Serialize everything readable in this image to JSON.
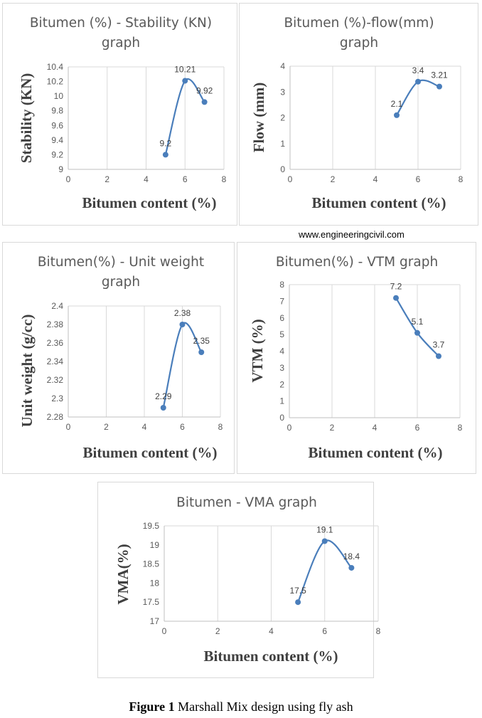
{
  "watermark": "www.engineeringcivil.com",
  "caption": {
    "label": "Figure 1",
    "text": " Marshall Mix design using fly ash"
  },
  "colors": {
    "series": "#4a7ebb",
    "grid": "#d9d9d9",
    "text": "#595959"
  },
  "chart_data": [
    {
      "type": "line",
      "title_lines": [
        "Bitumen (%) - Stability (KN)",
        "graph"
      ],
      "xlabel": "Bitumen content (%)",
      "ylabel": "Stability (KN)",
      "xlim": [
        0,
        8
      ],
      "xticks": [
        0,
        2,
        4,
        6,
        8
      ],
      "xtick_labels": [
        "0",
        "2",
        "4",
        "6",
        "8"
      ],
      "ylim": [
        9,
        10.4
      ],
      "yticks": [
        9,
        9.2,
        9.4,
        9.6,
        9.8,
        10,
        10.2,
        10.4
      ],
      "ytick_labels": [
        "9",
        "9.2",
        "9.4",
        "9.6",
        "9.8",
        "10",
        "10.2",
        "10.4"
      ],
      "x": [
        5,
        6,
        7
      ],
      "y": [
        9.2,
        10.21,
        9.92
      ],
      "data_labels": [
        "9.2",
        "10.21",
        "9.92"
      ],
      "smooth": true,
      "grid": "vertical"
    },
    {
      "type": "line",
      "title_lines": [
        "Bitumen (%)-flow(mm)",
        "graph"
      ],
      "xlabel": "Bitumen content (%)",
      "ylabel": "Flow (mm)",
      "xlim": [
        0,
        8
      ],
      "xticks": [
        0,
        2,
        4,
        6,
        8
      ],
      "xtick_labels": [
        "0",
        "2",
        "4",
        "6",
        "8"
      ],
      "ylim": [
        0,
        4
      ],
      "yticks": [
        0,
        1,
        2,
        3,
        4
      ],
      "ytick_labels": [
        "0",
        "1",
        "2",
        "3",
        "4"
      ],
      "x": [
        5,
        6,
        7
      ],
      "y": [
        2.1,
        3.4,
        3.21
      ],
      "data_labels": [
        "2.1",
        "3.4",
        "3.21"
      ],
      "smooth": true,
      "grid": "vertical"
    },
    {
      "type": "line",
      "title_lines": [
        "Bitumen(%) - Unit weight",
        "graph"
      ],
      "xlabel": "Bitumen content (%)",
      "ylabel": "Unit weight (g/cc)",
      "xlim": [
        0,
        8
      ],
      "xticks": [
        0,
        2,
        4,
        6,
        8
      ],
      "xtick_labels": [
        "0",
        "2",
        "4",
        "6",
        "8"
      ],
      "ylim": [
        2.28,
        2.4
      ],
      "yticks": [
        2.28,
        2.3,
        2.32,
        2.34,
        2.36,
        2.38,
        2.4
      ],
      "ytick_labels": [
        "2.28",
        "2.3",
        "2.32",
        "2.34",
        "2.36",
        "2.38",
        "2.4"
      ],
      "x": [
        5,
        6,
        7
      ],
      "y": [
        2.29,
        2.38,
        2.35
      ],
      "data_labels": [
        "2.29",
        "2.38",
        "2.35"
      ],
      "smooth": true,
      "grid": "vertical"
    },
    {
      "type": "line",
      "title_lines": [
        "Bitumen(%) - VTM graph"
      ],
      "xlabel": "Bitumen content (%)",
      "ylabel": "VTM (%)",
      "xlim": [
        0,
        8
      ],
      "xticks": [
        0,
        2,
        4,
        6,
        8
      ],
      "xtick_labels": [
        "0",
        "2",
        "4",
        "6",
        "8"
      ],
      "ylim": [
        0,
        8
      ],
      "yticks": [
        0,
        1,
        2,
        3,
        4,
        5,
        6,
        7,
        8
      ],
      "ytick_labels": [
        "0",
        "1",
        "2",
        "3",
        "4",
        "5",
        "6",
        "7",
        "8"
      ],
      "x": [
        5,
        6,
        7
      ],
      "y": [
        7.2,
        5.1,
        3.7
      ],
      "data_labels": [
        "7.2",
        "5.1",
        "3.7"
      ],
      "smooth": true,
      "grid": "vertical"
    },
    {
      "type": "line",
      "title_lines": [
        "Bitumen - VMA graph"
      ],
      "xlabel": "Bitumen content (%)",
      "ylabel": "VMA(%)",
      "xlim": [
        0,
        8
      ],
      "xticks": [
        0,
        2,
        4,
        6,
        8
      ],
      "xtick_labels": [
        "0",
        "2",
        "4",
        "6",
        "8"
      ],
      "ylim": [
        17,
        19.5
      ],
      "yticks": [
        17,
        17.5,
        18,
        18.5,
        19,
        19.5
      ],
      "ytick_labels": [
        "17",
        "17.5",
        "18",
        "18.5",
        "19",
        "19.5"
      ],
      "x": [
        5,
        6,
        7
      ],
      "y": [
        17.5,
        19.1,
        18.4
      ],
      "data_labels": [
        "17.5",
        "19.1",
        "18.4"
      ],
      "smooth": true,
      "grid": "vertical"
    }
  ]
}
